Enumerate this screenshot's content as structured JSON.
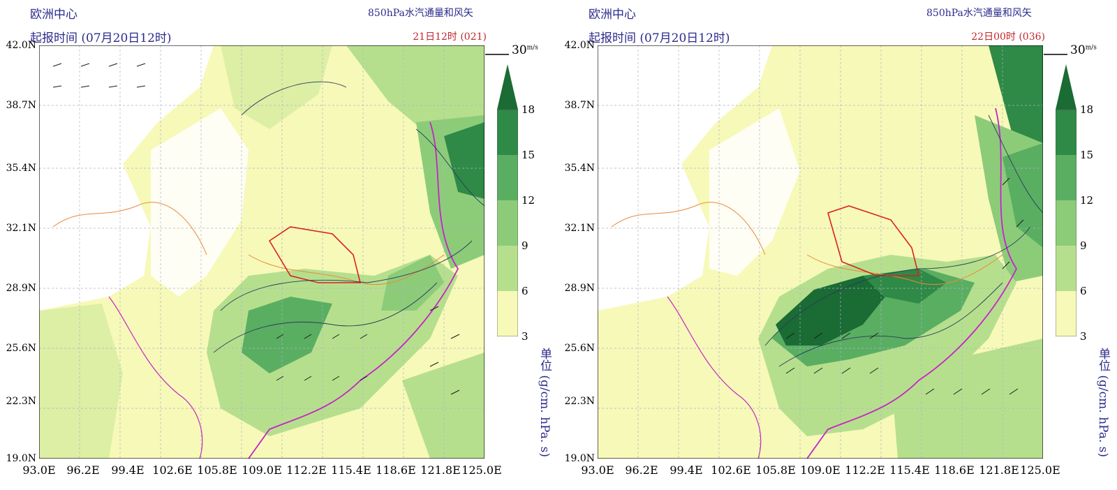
{
  "panels": [
    {
      "center": "欧洲中心",
      "init_time": "起报时间 (07月20日12时)",
      "product": "850hPa水汽通量和风矢",
      "valid_time": "21日12时 (021)"
    },
    {
      "center": "欧洲中心",
      "init_time": "起报时间 (07月20日12时)",
      "product": "850hPa水汽通量和风矢",
      "valid_time": "22日00时 (036)"
    }
  ],
  "map": {
    "lat_labels": [
      "42.0N",
      "38.7N",
      "35.4N",
      "32.1N",
      "28.9N",
      "25.6N",
      "22.3N",
      "19.0N"
    ],
    "lon_labels": [
      "93.0E",
      "96.2E",
      "99.4E",
      "102.6E",
      "105.8E",
      "109.0E",
      "112.2E",
      "115.4E",
      "118.6E",
      "121.8E",
      "125.0E"
    ],
    "wind_reference": "30",
    "wind_reference_unit": "m/s"
  },
  "colorbar": {
    "ticks": [
      "18",
      "15",
      "12",
      "9",
      "6",
      "3"
    ],
    "unit": "单位 (g/cm. hPa. s)",
    "colors": [
      "#f7f9b8",
      "#dcefa5",
      "#b6df8d",
      "#8ccc79",
      "#5aae62",
      "#2e8a46",
      "#1a6b34"
    ]
  },
  "colors": {
    "title": "#2a2a8c",
    "valid_time": "#c0262c",
    "coast": "#c623c8",
    "red_boundary": "#d92121",
    "river": "#e88a3c",
    "contour": "#2a3c5a"
  }
}
